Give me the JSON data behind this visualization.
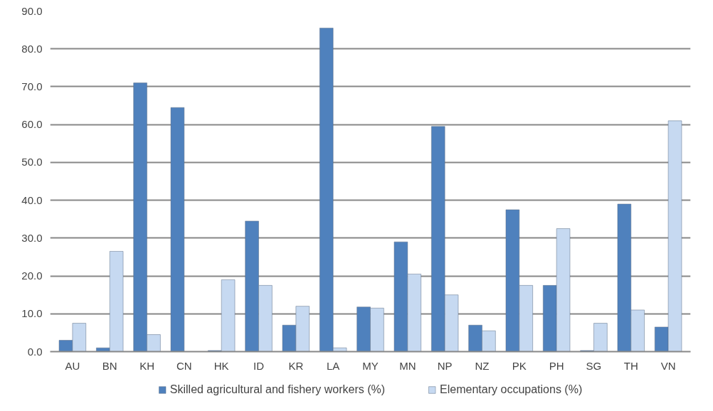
{
  "chart_data": {
    "type": "bar",
    "categories": [
      "AU",
      "BN",
      "KH",
      "CN",
      "HK",
      "ID",
      "KR",
      "LA",
      "MY",
      "MN",
      "NP",
      "NZ",
      "PK",
      "PH",
      "SG",
      "TH",
      "VN"
    ],
    "series": [
      {
        "name": "Skilled agricultural and fishery workers (%)",
        "color": "#4f81bd",
        "values": [
          3,
          1,
          71,
          64.5,
          0.3,
          34.5,
          7,
          85.5,
          11.8,
          29,
          59.5,
          7,
          37.5,
          17.5,
          0.3,
          39,
          6.5
        ]
      },
      {
        "name": "Elementary occupations (%)",
        "color": "#c6d9f1",
        "values": [
          7.5,
          26.5,
          4.5,
          null,
          19,
          17.5,
          12,
          1,
          11.5,
          20.5,
          15,
          5.5,
          17.5,
          32.5,
          7.5,
          11,
          61
        ]
      }
    ],
    "ylim": [
      0,
      90
    ],
    "yticks": [
      {
        "value": 0,
        "label": "0.0"
      },
      {
        "value": 10,
        "label": "10.0"
      },
      {
        "value": 20,
        "label": "20.0"
      },
      {
        "value": 30,
        "label": "30.0"
      },
      {
        "value": 40,
        "label": "40.0"
      },
      {
        "value": 50,
        "label": "50.0"
      },
      {
        "value": 60,
        "label": "60.0"
      },
      {
        "value": 70,
        "label": "70.0"
      },
      {
        "value": 80,
        "label": "80.0"
      },
      {
        "value": 90,
        "label": "90.0"
      }
    ],
    "grid": "y",
    "legend": "bottom"
  }
}
